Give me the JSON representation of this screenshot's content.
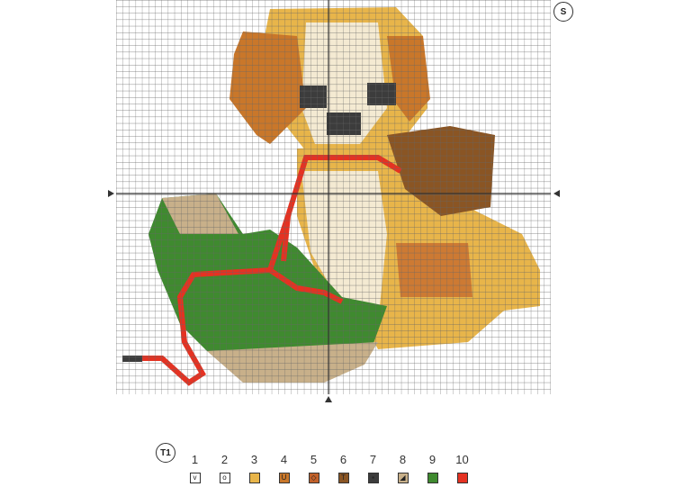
{
  "chart_label": "S",
  "legend": {
    "title": "T1",
    "items": [
      {
        "number": "1",
        "symbol": "v",
        "color": "#ffffff"
      },
      {
        "number": "2",
        "symbol": "o",
        "color": "#ffffff"
      },
      {
        "number": "3",
        "symbol": "",
        "color": "#e8b54a"
      },
      {
        "number": "4",
        "symbol": "U",
        "color": "#c9772a"
      },
      {
        "number": "5",
        "symbol": "◇",
        "color": "#c2612a"
      },
      {
        "number": "6",
        "symbol": "T",
        "color": "#8a5524"
      },
      {
        "number": "7",
        "symbol": "▪",
        "color": "#3c3c3c"
      },
      {
        "number": "8",
        "symbol": "◢",
        "color": "#c8b08a"
      },
      {
        "number": "9",
        "symbol": "",
        "color": "#3f8a2f"
      },
      {
        "number": "10",
        "symbol": "",
        "color": "#e53222"
      }
    ]
  }
}
